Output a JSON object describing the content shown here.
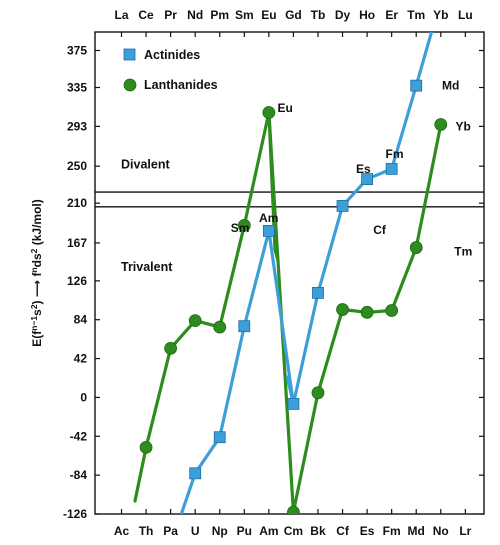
{
  "chart_data": {
    "type": "line",
    "title": "",
    "xlabel": "",
    "ylabel": "E(fⁿ⁻¹s²) → fⁿds² (kJ/mol)",
    "ylabel_parts": [
      "E(f",
      "n−1",
      "s",
      "2",
      ") ",
      "⟶",
      " f",
      "n",
      "ds",
      "2",
      " (kJ/mol)"
    ],
    "top_axis_labels": [
      "La",
      "Ce",
      "Pr",
      "Nd",
      "Pm",
      "Sm",
      "Eu",
      "Gd",
      "Tb",
      "Dy",
      "Ho",
      "Er",
      "Tm",
      "Yb",
      "Lu"
    ],
    "bottom_axis_labels": [
      "Ac",
      "Th",
      "Pa",
      "U",
      "Np",
      "Pu",
      "Am",
      "Cm",
      "Bk",
      "Cf",
      "Es",
      "Fm",
      "Md",
      "No",
      "Lr"
    ],
    "yticks": [
      -126,
      -84,
      -42,
      0,
      42,
      84,
      126,
      167,
      210,
      250,
      293,
      335,
      375
    ],
    "ylim": [
      -126,
      395
    ],
    "grid": false,
    "legend_position": "top-left",
    "series": [
      {
        "name": "Actinides",
        "color": "#3d9fd8",
        "marker": "square",
        "x": [
          2,
          3,
          4,
          5,
          6,
          7,
          8,
          9,
          10,
          11,
          12,
          13
        ],
        "y": [
          -160,
          -82,
          -43,
          77,
          180,
          -7,
          113,
          207,
          236,
          247,
          337,
          430
        ]
      },
      {
        "name": "Lanthanides",
        "color": "#2e8b1e",
        "marker": "circle",
        "x": [
          1,
          2,
          3,
          4,
          5,
          6,
          7,
          8,
          9,
          10,
          11,
          12,
          13
        ],
        "y": [
          -54,
          53,
          83,
          76,
          186,
          308,
          -124,
          5,
          95,
          92,
          94,
          162,
          295
        ]
      }
    ],
    "extra_segments": [
      {
        "series": "Lanthanides",
        "x": [
          0.55,
          1
        ],
        "y": [
          -112,
          -54
        ]
      },
      {
        "series": "Lanthanides",
        "x": [
          6,
          6.25,
          6.35
        ],
        "y": [
          308,
          160,
          150
        ]
      },
      {
        "series": "Actinides",
        "x": [
          6.75,
          7
        ],
        "y": [
          22,
          -7
        ]
      }
    ],
    "annotations": [
      {
        "text": "Eu",
        "x": 6.35,
        "y": 313
      },
      {
        "text": "Yb",
        "x": 13.6,
        "y": 293
      },
      {
        "text": "Md",
        "x": 13.05,
        "y": 337
      },
      {
        "text": "Fm",
        "x": 10.75,
        "y": 263
      },
      {
        "text": "Es",
        "x": 9.55,
        "y": 247
      },
      {
        "text": "Cf",
        "x": 10.25,
        "y": 181
      },
      {
        "text": "Sm",
        "x": 4.45,
        "y": 183
      },
      {
        "text": "Am",
        "x": 5.6,
        "y": 194
      },
      {
        "text": "Tm",
        "x": 13.55,
        "y": 158
      }
    ],
    "regions": [
      {
        "text": "Divalent",
        "y": 252
      },
      {
        "text": "Trivalent",
        "y": 141
      }
    ],
    "hlines": [
      {
        "y": 222,
        "color": "#111111"
      },
      {
        "y": 206,
        "color": "#111111"
      }
    ]
  }
}
